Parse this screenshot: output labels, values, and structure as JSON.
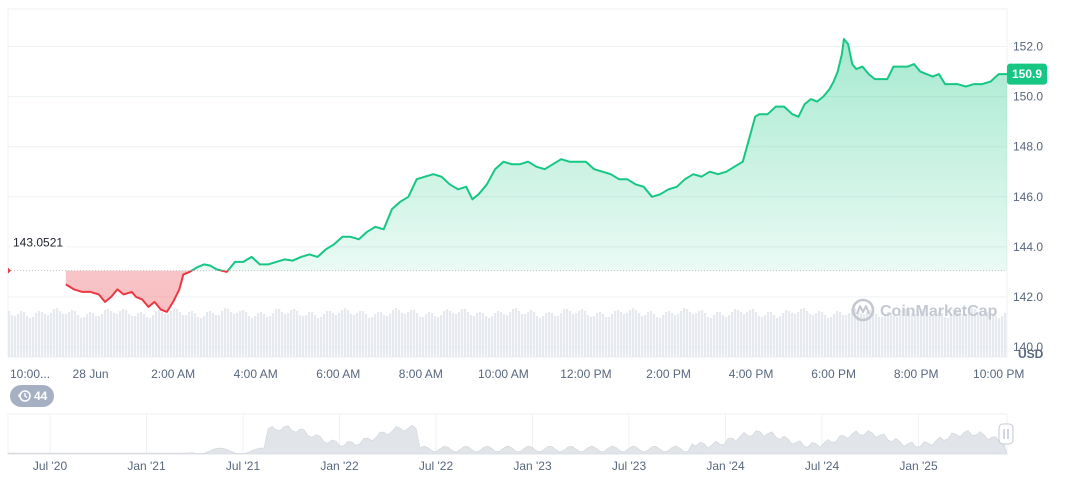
{
  "colors": {
    "up": "#16c784",
    "down": "#ea3943",
    "grid": "#eff2f5",
    "text": "#58667e",
    "volume": "#e6e9ee",
    "nav_fill": "#e1e4e9",
    "badge_bg": "#a6b0c3",
    "baseline": "#c0c4cc"
  },
  "icons": {
    "watermark": "coinmarketcap-logo-icon",
    "badge": "clock-history-icon",
    "handle": "slider-handle-icon"
  },
  "currency_label": "USD",
  "watermark_text": "CoinMarketCap",
  "history_badge": "44",
  "current_price_tag": "150.9",
  "baseline_label": "143.0521",
  "chart_data": {
    "type": "area",
    "baseline": 143.0521,
    "current": 150.9,
    "ylim": [
      139.6,
      153.5
    ],
    "xlim": [
      0,
      24.2
    ],
    "yticks": [
      {
        "value": 140,
        "label": "140.0"
      },
      {
        "value": 142,
        "label": "142.0"
      },
      {
        "value": 144,
        "label": "144.0"
      },
      {
        "value": 146,
        "label": "146.0"
      },
      {
        "value": 148,
        "label": "148.0"
      },
      {
        "value": 150,
        "label": "150.0"
      },
      {
        "value": 152,
        "label": "152.0"
      }
    ],
    "xticks": [
      {
        "value": 0.05,
        "label": "10:00..."
      },
      {
        "value": 2,
        "label": "28 Jun"
      },
      {
        "value": 4,
        "label": "2:00 AM"
      },
      {
        "value": 6,
        "label": "4:00 AM"
      },
      {
        "value": 8,
        "label": "6:00 AM"
      },
      {
        "value": 10,
        "label": "8:00 AM"
      },
      {
        "value": 12,
        "label": "10:00 AM"
      },
      {
        "value": 14,
        "label": "12:00 PM"
      },
      {
        "value": 16,
        "label": "2:00 PM"
      },
      {
        "value": 18,
        "label": "4:00 PM"
      },
      {
        "value": 20,
        "label": "6:00 PM"
      },
      {
        "value": 22,
        "label": "8:00 PM"
      },
      {
        "value": 24,
        "label": "10:00 PM"
      }
    ],
    "series": [
      {
        "points": [
          [
            1.4,
            142.5
          ],
          [
            1.6,
            142.3
          ],
          [
            1.8,
            142.2
          ],
          [
            2.0,
            142.2
          ],
          [
            2.2,
            142.1
          ],
          [
            2.35,
            141.8
          ],
          [
            2.5,
            142.0
          ],
          [
            2.65,
            142.3
          ],
          [
            2.8,
            142.1
          ],
          [
            3.0,
            142.2
          ],
          [
            3.1,
            142.0
          ],
          [
            3.25,
            141.9
          ],
          [
            3.4,
            141.6
          ],
          [
            3.55,
            141.8
          ],
          [
            3.7,
            141.5
          ],
          [
            3.85,
            141.4
          ],
          [
            4.0,
            141.8
          ],
          [
            4.15,
            142.3
          ],
          [
            4.25,
            142.9
          ],
          [
            4.4,
            143.0
          ],
          [
            4.6,
            143.2
          ],
          [
            4.75,
            143.3
          ],
          [
            4.9,
            143.25
          ],
          [
            5.05,
            143.1
          ],
          [
            5.3,
            143.0
          ],
          [
            5.5,
            143.4
          ],
          [
            5.7,
            143.4
          ],
          [
            5.9,
            143.6
          ],
          [
            6.1,
            143.3
          ],
          [
            6.3,
            143.3
          ],
          [
            6.5,
            143.4
          ],
          [
            6.7,
            143.5
          ],
          [
            6.9,
            143.45
          ],
          [
            7.1,
            143.6
          ],
          [
            7.3,
            143.7
          ],
          [
            7.5,
            143.6
          ],
          [
            7.7,
            143.9
          ],
          [
            7.9,
            144.1
          ],
          [
            8.1,
            144.4
          ],
          [
            8.3,
            144.4
          ],
          [
            8.5,
            144.3
          ],
          [
            8.7,
            144.6
          ],
          [
            8.9,
            144.8
          ],
          [
            9.1,
            144.7
          ],
          [
            9.3,
            145.5
          ],
          [
            9.5,
            145.8
          ],
          [
            9.7,
            146.0
          ],
          [
            9.9,
            146.7
          ],
          [
            10.1,
            146.8
          ],
          [
            10.3,
            146.9
          ],
          [
            10.5,
            146.8
          ],
          [
            10.7,
            146.5
          ],
          [
            10.9,
            146.3
          ],
          [
            11.1,
            146.4
          ],
          [
            11.25,
            145.9
          ],
          [
            11.4,
            146.1
          ],
          [
            11.6,
            146.5
          ],
          [
            11.8,
            147.1
          ],
          [
            12.0,
            147.4
          ],
          [
            12.2,
            147.3
          ],
          [
            12.4,
            147.3
          ],
          [
            12.6,
            147.4
          ],
          [
            12.8,
            147.2
          ],
          [
            13.0,
            147.1
          ],
          [
            13.2,
            147.3
          ],
          [
            13.4,
            147.5
          ],
          [
            13.6,
            147.4
          ],
          [
            13.8,
            147.4
          ],
          [
            14.0,
            147.4
          ],
          [
            14.2,
            147.1
          ],
          [
            14.4,
            147.0
          ],
          [
            14.6,
            146.9
          ],
          [
            14.8,
            146.7
          ],
          [
            15.0,
            146.7
          ],
          [
            15.2,
            146.5
          ],
          [
            15.4,
            146.4
          ],
          [
            15.6,
            146.0
          ],
          [
            15.8,
            146.1
          ],
          [
            16.0,
            146.3
          ],
          [
            16.2,
            146.4
          ],
          [
            16.4,
            146.7
          ],
          [
            16.6,
            146.9
          ],
          [
            16.8,
            146.8
          ],
          [
            17.0,
            147.0
          ],
          [
            17.2,
            146.9
          ],
          [
            17.4,
            147.0
          ],
          [
            17.6,
            147.2
          ],
          [
            17.8,
            147.4
          ],
          [
            18.0,
            148.6
          ],
          [
            18.1,
            149.2
          ],
          [
            18.2,
            149.3
          ],
          [
            18.4,
            149.3
          ],
          [
            18.6,
            149.6
          ],
          [
            18.8,
            149.6
          ],
          [
            19.0,
            149.3
          ],
          [
            19.15,
            149.2
          ],
          [
            19.3,
            149.7
          ],
          [
            19.45,
            149.9
          ],
          [
            19.6,
            149.8
          ],
          [
            19.75,
            150.0
          ],
          [
            19.9,
            150.3
          ],
          [
            20.0,
            150.6
          ],
          [
            20.1,
            151.0
          ],
          [
            20.2,
            151.7
          ],
          [
            20.25,
            152.3
          ],
          [
            20.35,
            152.1
          ],
          [
            20.45,
            151.3
          ],
          [
            20.55,
            151.1
          ],
          [
            20.7,
            151.2
          ],
          [
            20.85,
            150.9
          ],
          [
            21.0,
            150.7
          ],
          [
            21.15,
            150.7
          ],
          [
            21.3,
            150.7
          ],
          [
            21.45,
            151.2
          ],
          [
            21.6,
            151.2
          ],
          [
            21.8,
            151.2
          ],
          [
            21.95,
            151.3
          ],
          [
            22.1,
            151.0
          ],
          [
            22.25,
            150.9
          ],
          [
            22.4,
            150.8
          ],
          [
            22.55,
            150.9
          ],
          [
            22.7,
            150.5
          ],
          [
            22.85,
            150.5
          ],
          [
            23.0,
            150.5
          ],
          [
            23.2,
            150.4
          ],
          [
            23.4,
            150.5
          ],
          [
            23.6,
            150.5
          ],
          [
            23.8,
            150.6
          ],
          [
            24.0,
            150.9
          ],
          [
            24.2,
            150.9
          ]
        ]
      }
    ],
    "navigator": {
      "ticks": [
        "Jul '20",
        "Jan '21",
        "Jul '21",
        "Jan '22",
        "Jul '22",
        "Jan '23",
        "Jul '23",
        "Jan '24",
        "Jul '24",
        "Jan '25"
      ]
    }
  }
}
